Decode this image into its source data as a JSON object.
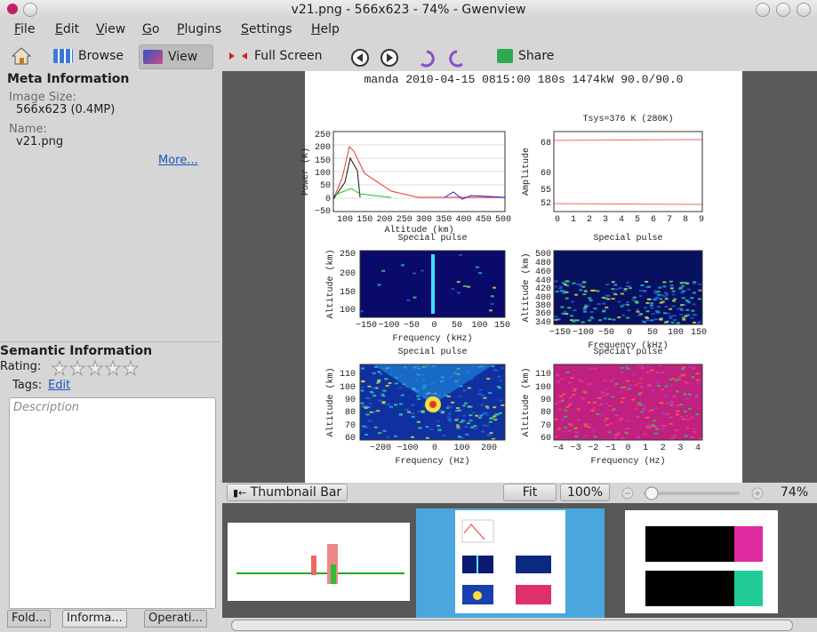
{
  "window": {
    "title": "v21.png - 566x623 - 74% - Gwenview"
  },
  "menu": [
    "File",
    "Edit",
    "View",
    "Go",
    "Plugins",
    "Settings",
    "Help"
  ],
  "toolbar": {
    "browse": "Browse",
    "view": "View",
    "full_screen": "Full Screen",
    "share": "Share"
  },
  "sidebar": {
    "meta_header": "Meta Information",
    "image_size_label": "Image Size:",
    "image_size": "566x623 (0.4MP)",
    "name_label": "Name:",
    "name": "v21.png",
    "more": "More...",
    "semantic_header": "Semantic Information",
    "rating_label": "Rating:",
    "tags_label": "Tags:",
    "tags_edit": "Edit",
    "description_placeholder": "Description",
    "tabs": [
      "Fold...",
      "Informa...",
      "Operati..."
    ]
  },
  "statusbar": {
    "thumbnail_bar": "Thumbnail Bar",
    "fit": "Fit",
    "zoom_100": "100%",
    "zoom": "74%"
  },
  "image": {
    "header": "manda 2010-04-15 0815:00 180s 1474kW 90.0/90.0",
    "plots": [
      {
        "ylabel": "Power (K)",
        "xlabel": "Altitude (km)",
        "yticks": [
          "250",
          "200",
          "150",
          "100",
          "50",
          "0",
          "−50"
        ],
        "xticks": [
          "100",
          "150",
          "200",
          "250",
          "300",
          "350",
          "400",
          "450",
          "500"
        ]
      },
      {
        "title": "Tsys=376 K (280K)",
        "ylabel": "Amplitude",
        "yticks": [
          "68",
          "60",
          "55",
          "52"
        ],
        "xticks": [
          "0",
          "1",
          "2",
          "3",
          "4",
          "5",
          "6",
          "7",
          "8",
          "9"
        ]
      },
      {
        "title": "Special pulse",
        "ylabel": "Altitude (km)",
        "xlabel": "Frequency (kHz)",
        "yticks": [
          "250",
          "200",
          "150",
          "100"
        ],
        "xticks": [
          "−150",
          "−100",
          "−50",
          "0",
          "50",
          "100",
          "150"
        ]
      },
      {
        "title": "Special pulse",
        "ylabel": "Altitude (km)",
        "xlabel": "Frequency (kHz)",
        "yticks": [
          "500",
          "480",
          "460",
          "440",
          "420",
          "400",
          "380",
          "360",
          "340"
        ],
        "xticks": [
          "−150",
          "−100",
          "−50",
          "0",
          "50",
          "100",
          "150"
        ]
      },
      {
        "title": "Special pulse",
        "ylabel": "Altitude (km)",
        "xlabel": "Frequency (Hz)",
        "yticks": [
          "110",
          "100",
          "90",
          "80",
          "70",
          "60"
        ],
        "xticks": [
          "−200",
          "−100",
          "0",
          "100",
          "200"
        ]
      },
      {
        "title": "Special pulse",
        "ylabel": "Altitude (km)",
        "xlabel": "Frequency (Hz)",
        "yticks": [
          "110",
          "100",
          "90",
          "80",
          "70",
          "60"
        ],
        "xticks": [
          "−4",
          "−3",
          "−2",
          "−1",
          "0",
          "1",
          "2",
          "3",
          "4"
        ]
      }
    ]
  }
}
